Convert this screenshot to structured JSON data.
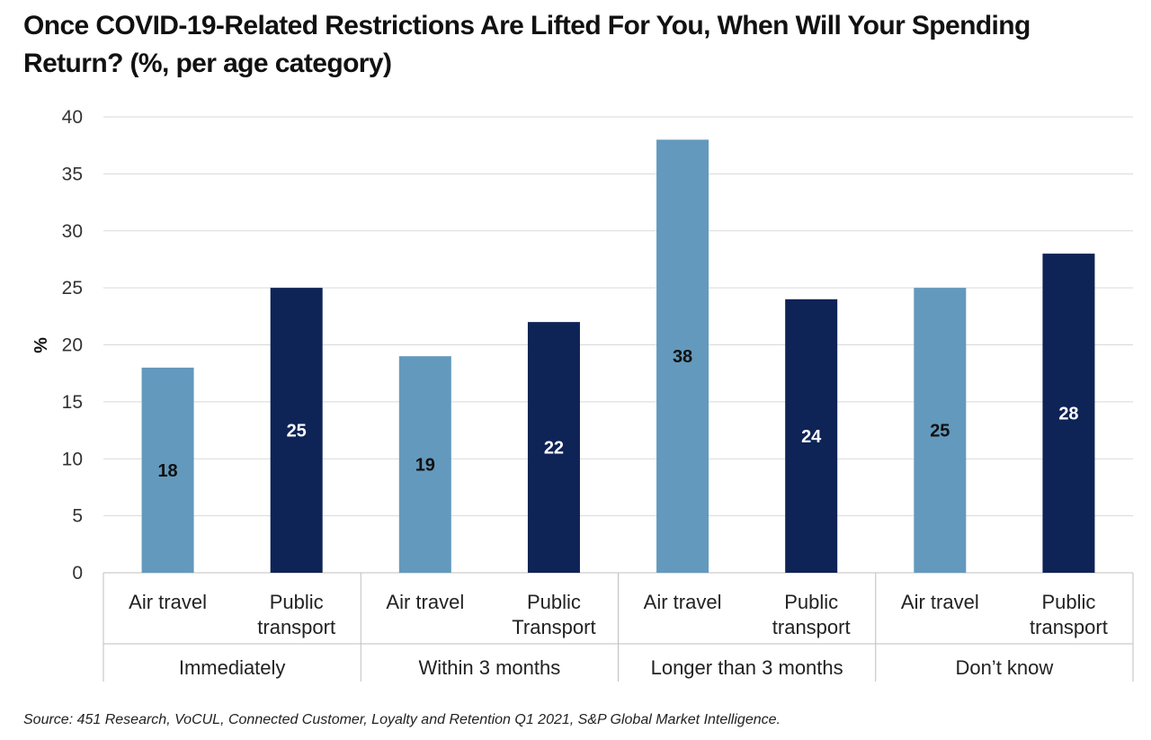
{
  "title": "Once COVID-19-Related Restrictions Are Lifted For You, When Will Your Spending Return? (%, per age category)",
  "source": "Source: 451 Research, VoCUL, Connected Customer, Loyalty and Retention Q1 2021, S&P Global Market Intelligence.",
  "colors": {
    "light": "#6399bd",
    "dark": "#0e2356",
    "grid": "#d9d9d9",
    "axis": "#bfbfbf"
  },
  "chart_data": {
    "type": "bar",
    "ylabel": "%",
    "xlabel": "",
    "ylim": [
      0,
      40
    ],
    "yticks": [
      0,
      5,
      10,
      15,
      20,
      25,
      30,
      35,
      40
    ],
    "grid": true,
    "groups": [
      {
        "label": "Immediately",
        "bars": [
          {
            "label": [
              "Air travel"
            ],
            "value": 18,
            "data_label": "18",
            "color": "light"
          },
          {
            "label": [
              "Public",
              "transport"
            ],
            "value": 25,
            "data_label": "25",
            "color": "dark"
          }
        ]
      },
      {
        "label": "Within 3 months",
        "bars": [
          {
            "label": [
              "Air travel"
            ],
            "value": 19,
            "data_label": "19",
            "color": "light"
          },
          {
            "label": [
              "Public",
              "Transport"
            ],
            "value": 22,
            "data_label": "22",
            "color": "dark"
          }
        ]
      },
      {
        "label": "Longer than 3 months",
        "bars": [
          {
            "label": [
              "Air travel"
            ],
            "value": 38,
            "data_label": "38",
            "color": "light"
          },
          {
            "label": [
              "Public",
              "transport"
            ],
            "value": 24,
            "data_label": "24",
            "color": "dark"
          }
        ]
      },
      {
        "label": "Don’t know",
        "bars": [
          {
            "label": [
              "Air travel"
            ],
            "value": 25,
            "data_label": "25",
            "color": "light"
          },
          {
            "label": [
              "Public",
              "transport"
            ],
            "value": 28,
            "data_label": "28",
            "color": "dark"
          }
        ]
      }
    ]
  }
}
